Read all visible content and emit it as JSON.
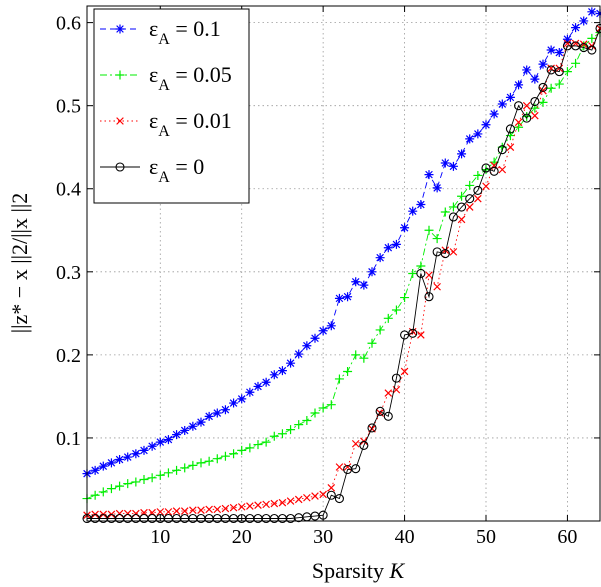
{
  "chart_data": {
    "type": "line",
    "xlabel": {
      "text": "Sparsity",
      "var": "K"
    },
    "ylabel": "||z* − x ||2/||x ||2",
    "xlim": [
      1,
      64
    ],
    "ylim": [
      0,
      0.62
    ],
    "xticks": [
      10,
      20,
      30,
      40,
      50,
      60
    ],
    "yticks": [
      0.1,
      0.2,
      0.3,
      0.4,
      0.5,
      0.6
    ],
    "xtick_labels": [
      "10",
      "20",
      "30",
      "40",
      "50",
      "60"
    ],
    "ytick_labels": [
      "0.1",
      "0.2",
      "0.3",
      "0.4",
      "0.5",
      "0.6"
    ],
    "grid": true,
    "legend_position": "top-left",
    "x": [
      1,
      2,
      3,
      4,
      5,
      6,
      7,
      8,
      9,
      10,
      11,
      12,
      13,
      14,
      15,
      16,
      17,
      18,
      19,
      20,
      21,
      22,
      23,
      24,
      25,
      26,
      27,
      28,
      29,
      30,
      31,
      32,
      33,
      34,
      35,
      36,
      37,
      38,
      39,
      40,
      41,
      42,
      43,
      44,
      45,
      46,
      47,
      48,
      49,
      50,
      51,
      52,
      53,
      54,
      55,
      56,
      57,
      58,
      59,
      60,
      61,
      62,
      63,
      64
    ],
    "series": [
      {
        "name": "ε_A = 0.1",
        "symbol": "ε",
        "sub": "A",
        "value": " = 0.1",
        "color": "#0000ff",
        "marker": "star",
        "line": "dashed",
        "values": [
          0.057,
          0.061,
          0.066,
          0.07,
          0.074,
          0.077,
          0.081,
          0.085,
          0.09,
          0.095,
          0.098,
          0.104,
          0.109,
          0.114,
          0.119,
          0.126,
          0.13,
          0.134,
          0.142,
          0.147,
          0.155,
          0.162,
          0.167,
          0.176,
          0.181,
          0.19,
          0.201,
          0.211,
          0.22,
          0.229,
          0.235,
          0.268,
          0.27,
          0.288,
          0.284,
          0.3,
          0.317,
          0.329,
          0.333,
          0.353,
          0.373,
          0.381,
          0.417,
          0.401,
          0.431,
          0.427,
          0.442,
          0.46,
          0.466,
          0.477,
          0.49,
          0.502,
          0.51,
          0.525,
          0.543,
          0.532,
          0.55,
          0.567,
          0.564,
          0.58,
          0.594,
          0.602,
          0.613,
          0.611
        ]
      },
      {
        "name": "ε_A = 0.05",
        "symbol": "ε",
        "sub": "A",
        "value": " = 0.05",
        "color": "#00ee00",
        "marker": "plus",
        "line": "dashdot",
        "values": [
          0.027,
          0.031,
          0.035,
          0.039,
          0.042,
          0.045,
          0.047,
          0.05,
          0.052,
          0.055,
          0.058,
          0.061,
          0.064,
          0.067,
          0.07,
          0.072,
          0.075,
          0.078,
          0.081,
          0.085,
          0.088,
          0.092,
          0.095,
          0.102,
          0.105,
          0.11,
          0.116,
          0.121,
          0.13,
          0.136,
          0.14,
          0.171,
          0.18,
          0.2,
          0.196,
          0.214,
          0.23,
          0.244,
          0.254,
          0.269,
          0.298,
          0.307,
          0.35,
          0.34,
          0.372,
          0.378,
          0.391,
          0.404,
          0.416,
          0.423,
          0.432,
          0.45,
          0.464,
          0.474,
          0.487,
          0.497,
          0.504,
          0.521,
          0.526,
          0.541,
          0.551,
          0.572,
          0.581,
          0.588
        ]
      },
      {
        "name": "ε_A = 0.01",
        "symbol": "ε",
        "sub": "A",
        "value": " = 0.01",
        "color": "#ff0000",
        "marker": "x",
        "line": "dotted",
        "values": [
          0.007,
          0.008,
          0.008,
          0.008,
          0.009,
          0.009,
          0.009,
          0.01,
          0.01,
          0.011,
          0.011,
          0.012,
          0.012,
          0.013,
          0.013,
          0.014,
          0.014,
          0.015,
          0.016,
          0.017,
          0.018,
          0.019,
          0.02,
          0.021,
          0.022,
          0.024,
          0.026,
          0.028,
          0.03,
          0.032,
          0.04,
          0.065,
          0.065,
          0.093,
          0.096,
          0.111,
          0.13,
          0.154,
          0.158,
          0.18,
          0.228,
          0.224,
          0.296,
          0.282,
          0.326,
          0.324,
          0.363,
          0.378,
          0.388,
          0.403,
          0.428,
          0.423,
          0.45,
          0.48,
          0.5,
          0.488,
          0.518,
          0.545,
          0.545,
          0.575,
          0.575,
          0.574,
          0.572,
          0.593
        ]
      },
      {
        "name": "ε_A = 0",
        "symbol": "ε",
        "sub": "A",
        "value": " = 0",
        "color": "#000000",
        "marker": "circle",
        "line": "solid",
        "values": [
          0.003,
          0.003,
          0.003,
          0.003,
          0.003,
          0.003,
          0.003,
          0.003,
          0.003,
          0.003,
          0.003,
          0.003,
          0.003,
          0.003,
          0.003,
          0.003,
          0.003,
          0.003,
          0.003,
          0.003,
          0.003,
          0.003,
          0.003,
          0.003,
          0.003,
          0.003,
          0.004,
          0.005,
          0.006,
          0.007,
          0.031,
          0.027,
          0.062,
          0.063,
          0.091,
          0.112,
          0.132,
          0.126,
          0.172,
          0.224,
          0.226,
          0.298,
          0.27,
          0.324,
          0.322,
          0.366,
          0.378,
          0.388,
          0.398,
          0.425,
          0.421,
          0.447,
          0.472,
          0.5,
          0.485,
          0.505,
          0.522,
          0.543,
          0.541,
          0.572,
          0.572,
          0.57,
          0.567,
          0.593
        ]
      }
    ]
  }
}
